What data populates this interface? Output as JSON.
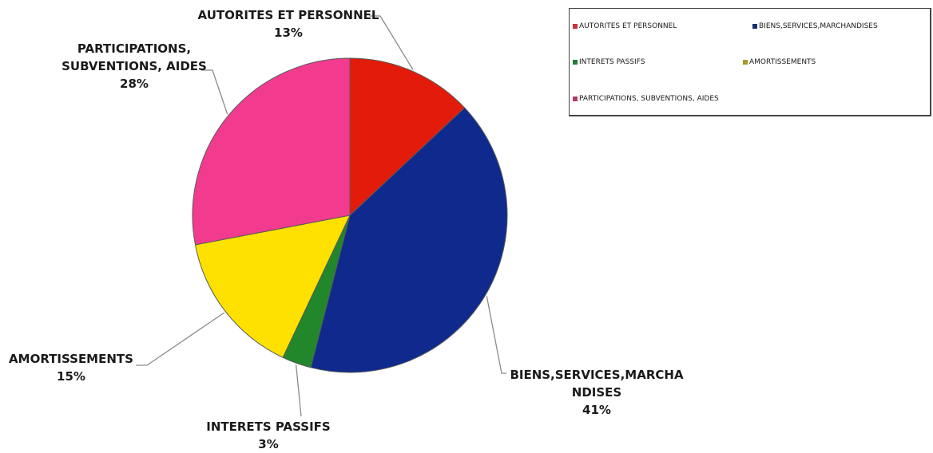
{
  "chart_data": {
    "type": "pie",
    "slices": [
      {
        "label": "AUTORITES ET PERSONNEL",
        "chart_label_lines": [
          "AUTORITES ET PERSONNEL"
        ],
        "percent_label": "13%",
        "value": 13,
        "color": "#e31b0a"
      },
      {
        "label": "BIENS,SERVICES,MARCHANDISES",
        "chart_label_lines": [
          "BIENS,SERVICES,MARCHA",
          "NDISES"
        ],
        "percent_label": "41%",
        "value": 41,
        "color": "#0f2a8c"
      },
      {
        "label": "INTERETS PASSIFS",
        "chart_label_lines": [
          "INTERETS PASSIFS"
        ],
        "percent_label": "3%",
        "value": 3,
        "color": "#22862a"
      },
      {
        "label": "AMORTISSEMENTS",
        "chart_label_lines": [
          "AMORTISSEMENTS"
        ],
        "percent_label": "15%",
        "value": 15,
        "color": "#ffe100"
      },
      {
        "label": "PARTICIPATIONS, SUBVENTIONS, AIDES",
        "chart_label_lines": [
          "PARTICIPATIONS,",
          "SUBVENTIONS, AIDES"
        ],
        "percent_label": "28%",
        "value": 28,
        "color": "#f23b8e"
      }
    ],
    "legend_entries": [
      {
        "label": "AUTORITES ET PERSONNEL",
        "color": "#c8323c"
      },
      {
        "label": "BIENS,SERVICES,MARCHANDISES",
        "color": "#17306b"
      },
      {
        "label": "INTERETS PASSIFS",
        "color": "#237a3a"
      },
      {
        "label": "AMORTISSEMENTS",
        "color": "#a89a24"
      },
      {
        "label": "PARTICIPATIONS, SUBVENTIONS, AIDES",
        "color": "#b23a70"
      }
    ],
    "legend_position": "top-right",
    "start_angle": "12 o'clock",
    "direction": "clockwise"
  }
}
